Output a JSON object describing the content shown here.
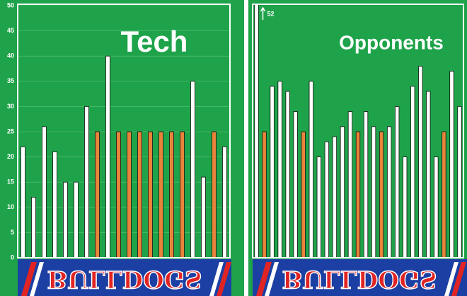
{
  "chart_data": [
    {
      "type": "bar",
      "title": "Tech",
      "categories": [
        null,
        null,
        null,
        null,
        null,
        null,
        null,
        null,
        null,
        null,
        null,
        null,
        null,
        null,
        null,
        null,
        null,
        null,
        null,
        null
      ],
      "values": [
        22,
        12,
        26,
        21,
        15,
        15,
        30,
        25,
        40,
        25,
        25,
        25,
        25,
        25,
        25,
        25,
        35,
        16,
        25,
        22
      ],
      "colors": [
        "#ffffff",
        "#ffffff",
        "#ffffff",
        "#ffffff",
        "#ffffff",
        "#ffffff",
        "#ffffff",
        "#e8843a",
        "#ffffff",
        "#e8843a",
        "#e8843a",
        "#e8843a",
        "#e8843a",
        "#e8843a",
        "#e8843a",
        "#e8843a",
        "#ffffff",
        "#ffffff",
        "#e8843a",
        "#ffffff"
      ],
      "ylim": [
        0,
        50
      ],
      "yticks": [
        0,
        5,
        10,
        15,
        20,
        25,
        30,
        35,
        40,
        45,
        50
      ],
      "grid": true
    },
    {
      "type": "bar",
      "title": "Opponents",
      "categories": [
        null,
        null,
        null,
        null,
        null,
        null,
        null,
        null,
        null,
        null,
        null,
        null,
        null,
        null,
        null,
        null,
        null,
        null,
        null,
        null,
        null,
        null,
        null,
        null,
        null,
        null,
        null
      ],
      "values": [
        52,
        25,
        34,
        35,
        33,
        29,
        25,
        35,
        20,
        23,
        24,
        26,
        29,
        25,
        29,
        26,
        25,
        26,
        30,
        20,
        34,
        38,
        33,
        20,
        25,
        37,
        30
      ],
      "colors": [
        "#ffffff",
        "#e8843a",
        "#ffffff",
        "#ffffff",
        "#ffffff",
        "#ffffff",
        "#e8843a",
        "#ffffff",
        "#ffffff",
        "#ffffff",
        "#ffffff",
        "#ffffff",
        "#ffffff",
        "#e8843a",
        "#ffffff",
        "#ffffff",
        "#e8843a",
        "#ffffff",
        "#ffffff",
        "#ffffff",
        "#ffffff",
        "#ffffff",
        "#ffffff",
        "#ffffff",
        "#e8843a",
        "#ffffff",
        "#ffffff"
      ],
      "ylim": [
        0,
        50
      ],
      "overflow_label": true
    }
  ],
  "banners": [
    "BULLDOGS",
    "BULLDOGS"
  ]
}
